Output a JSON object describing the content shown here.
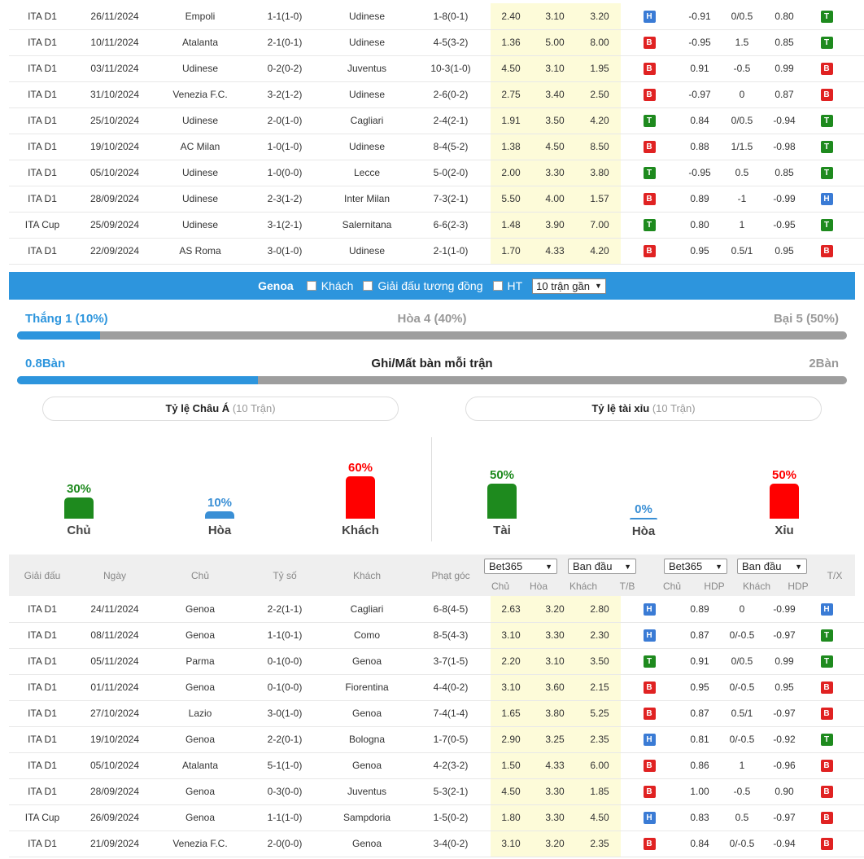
{
  "udinese_matches": [
    {
      "league": "ITA D1",
      "date": "26/11/2024",
      "home": "Empoli",
      "home_hl": false,
      "ft": "1-1",
      "ht": "(1-0)",
      "away": "Udinese",
      "away_hl": true,
      "corners": "1-8(0-1)",
      "o1": "2.40",
      "o2": "3.10",
      "o3": "3.20",
      "r1": "H",
      "a1": "-0.91",
      "a2": "0/0.5",
      "a3": "0.80",
      "r2": "T",
      "r3": "X"
    },
    {
      "league": "ITA D1",
      "date": "10/11/2024",
      "home": "Atalanta",
      "home_hl": false,
      "ft": "2-1",
      "ht": "(0-1)",
      "away": "Udinese",
      "away_hl": true,
      "corners": "4-5(3-2)",
      "o1": "1.36",
      "o2": "5.00",
      "o3": "8.00",
      "r1": "B",
      "a1": "-0.95",
      "a2": "1.5",
      "a3": "0.85",
      "r2": "T",
      "r3": "H"
    },
    {
      "league": "ITA D1",
      "date": "03/11/2024",
      "home": "Udinese",
      "home_hl": true,
      "ft": "0-2",
      "ht": "(0-2)",
      "away": "Juventus",
      "away_hl": false,
      "corners": "10-3(1-0)",
      "o1": "4.50",
      "o2": "3.10",
      "o3": "1.95",
      "r1": "B",
      "a1": "0.91",
      "a2": "-0.5",
      "a3": "0.99",
      "r2": "B",
      "r3": "H"
    },
    {
      "league": "ITA D1",
      "date": "31/10/2024",
      "home": "Venezia F.C.",
      "home_hl": false,
      "ft": "3-2",
      "ht": "(1-2)",
      "away": "Udinese",
      "away_hl": true,
      "corners": "2-6(0-2)",
      "o1": "2.75",
      "o2": "3.40",
      "o3": "2.50",
      "r1": "B",
      "a1": "-0.97",
      "a2": "0",
      "a3": "0.87",
      "r2": "B",
      "r3": "T"
    },
    {
      "league": "ITA D1",
      "date": "25/10/2024",
      "home": "Udinese",
      "home_hl": true,
      "ft": "2-0",
      "ht": "(1-0)",
      "away": "Cagliari",
      "away_hl": false,
      "corners": "2-4(2-1)",
      "o1": "1.91",
      "o2": "3.50",
      "o3": "4.20",
      "r1": "T",
      "a1": "0.84",
      "a2": "0/0.5",
      "a3": "-0.94",
      "r2": "T",
      "r3": "X"
    },
    {
      "league": "ITA D1",
      "date": "19/10/2024",
      "home": "AC Milan",
      "home_hl": false,
      "ft": "1-0",
      "ht": "(1-0)",
      "away": "Udinese",
      "away_hl": true,
      "corners": "8-4(5-2)",
      "o1": "1.38",
      "o2": "4.50",
      "o3": "8.50",
      "r1": "B",
      "a1": "0.88",
      "a2": "1/1.5",
      "a3": "-0.98",
      "r2": "T",
      "r3": "X"
    },
    {
      "league": "ITA D1",
      "date": "05/10/2024",
      "home": "Udinese",
      "home_hl": true,
      "ft": "1-0",
      "ht": "(0-0)",
      "away": "Lecce",
      "away_hl": false,
      "corners": "5-0(2-0)",
      "o1": "2.00",
      "o2": "3.30",
      "o3": "3.80",
      "r1": "T",
      "a1": "-0.95",
      "a2": "0.5",
      "a3": "0.85",
      "r2": "T",
      "r3": "X"
    },
    {
      "league": "ITA D1",
      "date": "28/09/2024",
      "home": "Udinese",
      "home_hl": true,
      "ft": "2-3",
      "ht": "(1-2)",
      "away": "Inter Milan",
      "away_hl": false,
      "corners": "7-3(2-1)",
      "o1": "5.50",
      "o2": "4.00",
      "o3": "1.57",
      "r1": "B",
      "a1": "0.89",
      "a2": "-1",
      "a3": "-0.99",
      "r2": "H",
      "r3": "T"
    },
    {
      "league": "ITA Cup",
      "date": "25/09/2024",
      "home": "Udinese",
      "home_hl": true,
      "ft": "3-1",
      "ht": "(2-1)",
      "away": "Salernitana",
      "away_hl": false,
      "corners": "6-6(2-3)",
      "o1": "1.48",
      "o2": "3.90",
      "o3": "7.00",
      "r1": "T",
      "a1": "0.80",
      "a2": "1",
      "a3": "-0.95",
      "r2": "T",
      "r3": "T"
    },
    {
      "league": "ITA D1",
      "date": "22/09/2024",
      "home": "AS Roma",
      "home_hl": false,
      "ft": "3-0",
      "ht": "(1-0)",
      "away": "Udinese",
      "away_hl": true,
      "corners": "2-1(1-0)",
      "o1": "1.70",
      "o2": "4.33",
      "o3": "4.20",
      "r1": "B",
      "a1": "0.95",
      "a2": "0.5/1",
      "a3": "0.95",
      "r2": "B",
      "r3": "T"
    }
  ],
  "filter_bar": {
    "team": "Genoa",
    "opt_away": "Khách",
    "opt_same_league": "Giải đấu tương đồng",
    "opt_ht": "HT",
    "recent_select": "10 trận gần"
  },
  "summary": {
    "win": "Thắng 1 (10%)",
    "draw": "Hòa 4 (40%)",
    "loss": "Bại 5 (50%)",
    "win_fraction": 0.1,
    "goals_for": "0.8Bàn",
    "goals_title": "Ghi/Mất bàn mỗi trận",
    "goals_against": "2Bàn",
    "goals_fraction": 0.29
  },
  "asian": {
    "title": "Tỷ lệ Châu Á",
    "sub": "(10 Trận)",
    "cols": [
      {
        "pct": "30%",
        "value": 30,
        "label": "Chủ",
        "color": "#1e8a1e"
      },
      {
        "pct": "10%",
        "value": 10,
        "label": "Hòa",
        "color": "#3a8fd5"
      },
      {
        "pct": "60%",
        "value": 60,
        "label": "Khách",
        "color": "#ff0000"
      }
    ]
  },
  "overunder": {
    "title": "Tỷ lệ tài xỉu",
    "sub": "(10 Trận)",
    "cols": [
      {
        "pct": "50%",
        "value": 50,
        "label": "Tài",
        "color": "#1e8a1e"
      },
      {
        "pct": "0%",
        "value": 0,
        "label": "Hòa",
        "color": "#3a8fd5"
      },
      {
        "pct": "50%",
        "value": 50,
        "label": "Xỉu",
        "color": "#ff0000"
      }
    ]
  },
  "headers": {
    "league": "Giải đấu",
    "date": "Ngày",
    "home": "Chủ",
    "score": "Tỷ số",
    "away": "Khách",
    "corners": "Phạt góc",
    "bookmaker1": "Bet365",
    "period1": "Ban đầu",
    "bookmaker2": "Bet365",
    "period2": "Ban đầu",
    "o_home": "Chủ",
    "o_draw": "Hòa",
    "o_away": "Khách",
    "tb": "T/B",
    "a_home": "Chủ",
    "a_hdp": "HDP",
    "a_away": "Khách",
    "a_hdp2": "HDP",
    "tx": "T/X"
  },
  "genoa_matches": [
    {
      "league": "ITA D1",
      "date": "24/11/2024",
      "home": "Genoa",
      "home_hl": true,
      "ft": "2-2",
      "ht": "(1-1)",
      "away": "Cagliari",
      "away_hl": false,
      "corners": "6-8(4-5)",
      "o1": "2.63",
      "o2": "3.20",
      "o3": "2.80",
      "r1": "H",
      "a1": "0.89",
      "a2": "0",
      "a3": "-0.99",
      "r2": "H",
      "r3": "T"
    },
    {
      "league": "ITA D1",
      "date": "08/11/2024",
      "home": "Genoa",
      "home_hl": true,
      "ft": "1-1",
      "ht": "(0-1)",
      "away": "Como",
      "away_hl": false,
      "corners": "8-5(4-3)",
      "o1": "3.10",
      "o2": "3.30",
      "o3": "2.30",
      "r1": "H",
      "a1": "0.87",
      "a2": "0/-0.5",
      "a3": "-0.97",
      "r2": "T",
      "r3": "X"
    },
    {
      "league": "ITA D1",
      "date": "05/11/2024",
      "home": "Parma",
      "home_hl": false,
      "ft": "0-1",
      "ht": "(0-0)",
      "away": "Genoa",
      "away_hl": true,
      "corners": "3-7(1-5)",
      "o1": "2.20",
      "o2": "3.10",
      "o3": "3.50",
      "r1": "T",
      "a1": "0.91",
      "a2": "0/0.5",
      "a3": "0.99",
      "r2": "T",
      "r3": "X"
    },
    {
      "league": "ITA D1",
      "date": "01/11/2024",
      "home": "Genoa",
      "home_hl": true,
      "ft": "0-1",
      "ht": "(0-0)",
      "away": "Fiorentina",
      "away_hl": false,
      "corners": "4-4(0-2)",
      "o1": "3.10",
      "o2": "3.60",
      "o3": "2.15",
      "r1": "B",
      "a1": "0.95",
      "a2": "0/-0.5",
      "a3": "0.95",
      "r2": "B",
      "r3": "X"
    },
    {
      "league": "ITA D1",
      "date": "27/10/2024",
      "home": "Lazio",
      "home_hl": false,
      "ft": "3-0",
      "ht": "(1-0)",
      "away": "Genoa",
      "away_hl": true,
      "corners": "7-4(1-4)",
      "o1": "1.65",
      "o2": "3.80",
      "o3": "5.25",
      "r1": "B",
      "a1": "0.87",
      "a2": "0.5/1",
      "a3": "-0.97",
      "r2": "B",
      "r3": "T"
    },
    {
      "league": "ITA D1",
      "date": "19/10/2024",
      "home": "Genoa",
      "home_hl": true,
      "ft": "2-2",
      "ht": "(0-1)",
      "away": "Bologna",
      "away_hl": false,
      "corners": "1-7(0-5)",
      "o1": "2.90",
      "o2": "3.25",
      "o3": "2.35",
      "r1": "H",
      "a1": "0.81",
      "a2": "0/-0.5",
      "a3": "-0.92",
      "r2": "T",
      "r3": "T"
    },
    {
      "league": "ITA D1",
      "date": "05/10/2024",
      "home": "Atalanta",
      "home_hl": false,
      "ft": "5-1",
      "ht": "(1-0)",
      "away": "Genoa",
      "away_hl": true,
      "corners": "4-2(3-2)",
      "o1": "1.50",
      "o2": "4.33",
      "o3": "6.00",
      "r1": "B",
      "a1": "0.86",
      "a2": "1",
      "a3": "-0.96",
      "r2": "B",
      "r3": "T"
    },
    {
      "league": "ITA D1",
      "date": "28/09/2024",
      "home": "Genoa",
      "home_hl": true,
      "ft": "0-3",
      "ht": "(0-0)",
      "away": "Juventus",
      "away_hl": false,
      "corners": "5-3(2-1)",
      "o1": "4.50",
      "o2": "3.30",
      "o3": "1.85",
      "r1": "B",
      "a1": "1.00",
      "a2": "-0.5",
      "a3": "0.90",
      "r2": "B",
      "r3": "T"
    },
    {
      "league": "ITA Cup",
      "date": "26/09/2024",
      "home": "Genoa",
      "home_hl": true,
      "ft": "1-1",
      "ht": "(1-0)",
      "away": "Sampdoria",
      "away_hl": false,
      "corners": "1-5(0-2)",
      "o1": "1.80",
      "o2": "3.30",
      "o3": "4.50",
      "r1": "H",
      "a1": "0.83",
      "a2": "0.5",
      "a3": "-0.97",
      "r2": "B",
      "r3": "X"
    },
    {
      "league": "ITA D1",
      "date": "21/09/2024",
      "home": "Venezia F.C.",
      "home_hl": false,
      "ft": "2-0",
      "ht": "(0-0)",
      "away": "Genoa",
      "away_hl": true,
      "corners": "3-4(0-2)",
      "o1": "3.10",
      "o2": "3.20",
      "o3": "2.35",
      "r1": "B",
      "a1": "0.84",
      "a2": "0/-0.5",
      "a3": "-0.94",
      "r2": "B",
      "r3": "X"
    }
  ]
}
